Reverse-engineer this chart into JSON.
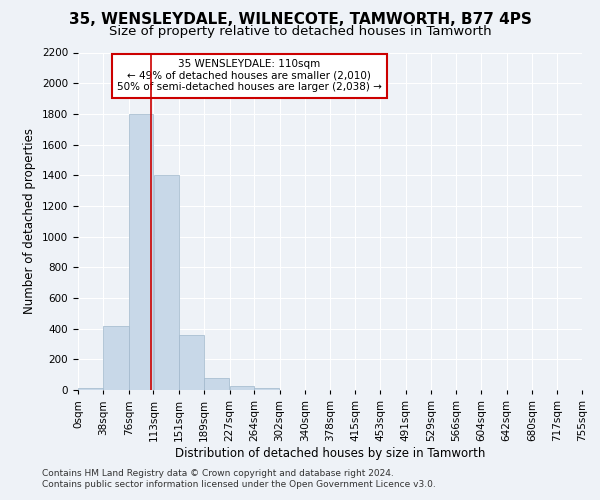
{
  "title": "35, WENSLEYDALE, WILNECOTE, TAMWORTH, B77 4PS",
  "subtitle": "Size of property relative to detached houses in Tamworth",
  "xlabel": "Distribution of detached houses by size in Tamworth",
  "ylabel": "Number of detached properties",
  "footer_line1": "Contains HM Land Registry data © Crown copyright and database right 2024.",
  "footer_line2": "Contains public sector information licensed under the Open Government Licence v3.0.",
  "annotation_title": "35 WENSLEYDALE: 110sqm",
  "annotation_line1": "← 49% of detached houses are smaller (2,010)",
  "annotation_line2": "50% of semi-detached houses are larger (2,038) →",
  "property_size": 110,
  "bar_edges": [
    0,
    38,
    76,
    113,
    151,
    189,
    227,
    264,
    302,
    340,
    378,
    415,
    453,
    491,
    529,
    566,
    604,
    642,
    680,
    717,
    755
  ],
  "bar_heights": [
    15,
    420,
    1800,
    1400,
    360,
    75,
    25,
    15,
    0,
    0,
    0,
    0,
    0,
    0,
    0,
    0,
    0,
    0,
    0,
    0
  ],
  "bar_color": "#c8d8e8",
  "bar_edge_color": "#a0b8cc",
  "vline_color": "#cc0000",
  "vline_x": 110,
  "ylim": [
    0,
    2200
  ],
  "yticks": [
    0,
    200,
    400,
    600,
    800,
    1000,
    1200,
    1400,
    1600,
    1800,
    2000,
    2200
  ],
  "background_color": "#eef2f7",
  "grid_color": "#ffffff",
  "title_fontsize": 11,
  "subtitle_fontsize": 9.5,
  "axis_label_fontsize": 8.5,
  "tick_fontsize": 7.5,
  "footer_fontsize": 6.5,
  "annotation_fontsize": 7.5,
  "annotation_box_color": "#ffffff",
  "annotation_box_edge": "#cc0000"
}
